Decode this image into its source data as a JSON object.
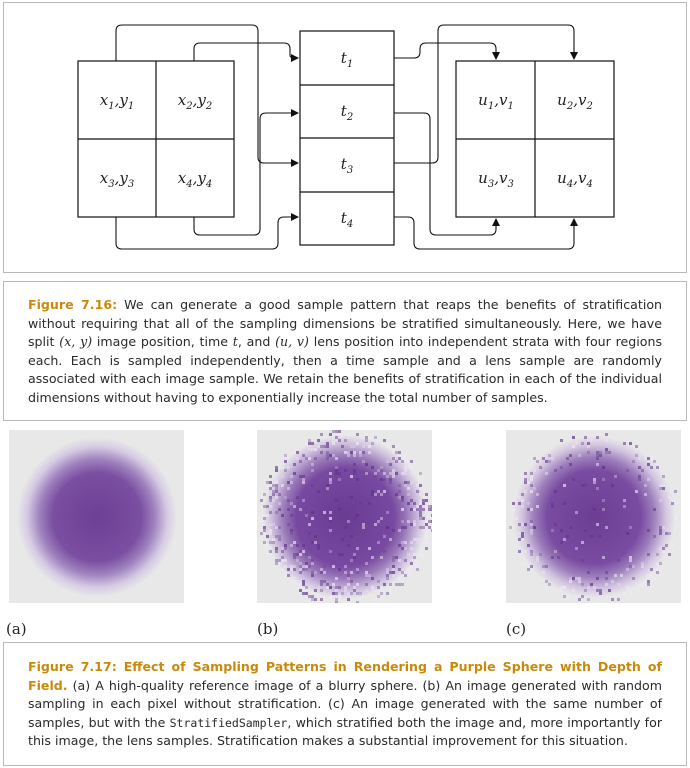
{
  "figure_7_16": {
    "samples_xy": [
      {
        "base": "x",
        "a": "1",
        "base2": "y",
        "b": "1"
      },
      {
        "base": "x",
        "a": "2",
        "base2": "y",
        "b": "2"
      },
      {
        "base": "x",
        "a": "3",
        "base2": "y",
        "b": "3"
      },
      {
        "base": "x",
        "a": "4",
        "base2": "y",
        "b": "4"
      }
    ],
    "samples_t": [
      {
        "base": "t",
        "a": "1"
      },
      {
        "base": "t",
        "a": "2"
      },
      {
        "base": "t",
        "a": "3"
      },
      {
        "base": "t",
        "a": "4"
      }
    ],
    "samples_uv": [
      {
        "base": "u",
        "a": "1",
        "base2": "v",
        "b": "1"
      },
      {
        "base": "u",
        "a": "2",
        "base2": "v",
        "b": "2"
      },
      {
        "base": "u",
        "a": "3",
        "base2": "v",
        "b": "3"
      },
      {
        "base": "u",
        "a": "4",
        "base2": "v",
        "b": "4"
      }
    ],
    "caption": {
      "label": "Figure 7.16:",
      "p1": " We can generate a good sample pattern that reaps the benefits of stratification without requiring that all of the sampling dimensions be stratified simultaneously. Here, we have split ",
      "m1": "(x, y)",
      "p2": " image position, time ",
      "m2": "t",
      "p3": ", and ",
      "m3": "(u, v)",
      "p4": " lens position into independent strata with four regions each. Each is sampled independently, then a time sample and a lens sample are randomly associated with each image sample. We retain the benefits of stratification in each of the individual dimensions without having to exponentially increase the total number of samples."
    }
  },
  "figure_7_17": {
    "sublabels": [
      "(a)",
      "(b)",
      "(c)"
    ],
    "colors": {
      "sphere": "#7a4fa0",
      "background": "#e8e8e8",
      "caption_label": "#c98a0c"
    },
    "caption": {
      "label": "Figure 7.17: Effect of Sampling Patterns in Rendering a Purple Sphere with Depth of Field.",
      "p1": " (a) A high-quality reference image of a blurry sphere. (b) An image generated with random sampling in each pixel without stratification. (c) An image generated with the same number of samples, but with the ",
      "code": "StratifiedSampler",
      "p2": ", which stratified both the image and, more importantly for this image, the lens samples. Stratification makes a substantial improvement for this situation."
    }
  }
}
